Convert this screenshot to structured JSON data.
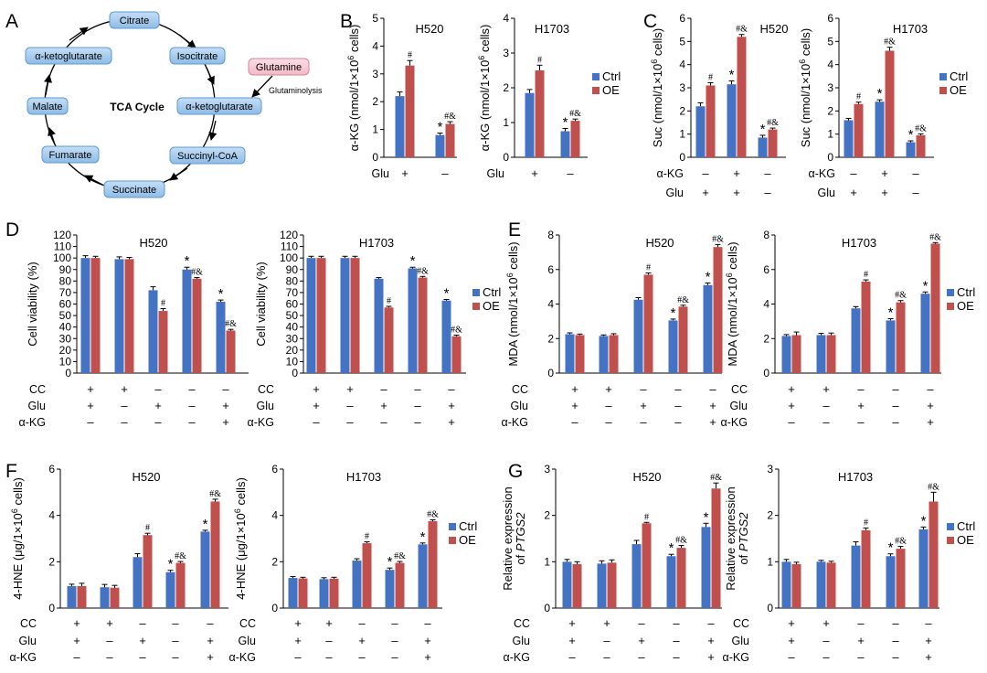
{
  "panel_letters": [
    "A",
    "B",
    "C",
    "D",
    "E",
    "F",
    "G"
  ],
  "colors": {
    "ctrl": "#4573c4",
    "oe": "#c0504d",
    "node_fill": "#9dc3ea",
    "node_stroke": "#5b9bd5",
    "glutamine_fill": "#f5c6cf",
    "glutamine_stroke": "#d9829a"
  },
  "legend": {
    "ctrl": "Ctrl",
    "oe": "OE"
  },
  "tca": {
    "center_label": "TCA Cycle",
    "nodes": [
      "Citrate",
      "Isocitrate",
      "α-ketoglutarate",
      "Succinyl-CoA",
      "Succinate",
      "Fumarate",
      "Malate",
      "α-ketoglutarate"
    ],
    "glutamine": "Glutamine",
    "glutaminolysis": "Glutaminolysis"
  },
  "chart_data": [
    {
      "id": "B1",
      "panel": "B",
      "type": "bar",
      "title": "H520",
      "ylabel": "α-KG (nmol/1×10⁶ cells)",
      "ylim": [
        0,
        5
      ],
      "yticks": [
        0,
        1,
        2,
        3,
        4,
        5
      ],
      "categories": [
        "g1",
        "g2"
      ],
      "series": [
        {
          "name": "Ctrl",
          "values": [
            2.2,
            0.8
          ],
          "errors": [
            0.15,
            0.07
          ]
        },
        {
          "name": "OE",
          "values": [
            3.3,
            1.2
          ],
          "errors": [
            0.18,
            0.08
          ]
        }
      ],
      "factors": [
        {
          "name": "Glu",
          "values": [
            "+",
            "-"
          ]
        }
      ],
      "marks": {
        "ctrl": [
          "",
          "*"
        ],
        "oe": [
          "#",
          "#&"
        ]
      }
    },
    {
      "id": "B2",
      "panel": "B",
      "type": "bar",
      "title": "H1703",
      "ylabel": "α-KG (nmol/1×10⁶ cells)",
      "ylim": [
        0,
        4
      ],
      "yticks": [
        0,
        1,
        2,
        3,
        4
      ],
      "categories": [
        "g1",
        "g2"
      ],
      "series": [
        {
          "name": "Ctrl",
          "values": [
            1.85,
            0.75
          ],
          "errors": [
            0.1,
            0.08
          ]
        },
        {
          "name": "OE",
          "values": [
            2.5,
            1.05
          ],
          "errors": [
            0.15,
            0.05
          ]
        }
      ],
      "factors": [
        {
          "name": "Glu",
          "values": [
            "+",
            "-"
          ]
        }
      ],
      "marks": {
        "ctrl": [
          "",
          "*"
        ],
        "oe": [
          "#",
          "#&"
        ]
      }
    },
    {
      "id": "C1",
      "panel": "C",
      "type": "bar",
      "title": "H520",
      "ylabel": "Suc (nmol/1×10⁶ cells)",
      "ylim": [
        0,
        6
      ],
      "yticks": [
        0,
        1,
        2,
        3,
        4,
        5,
        6
      ],
      "categories": [
        "g1",
        "g2",
        "g3"
      ],
      "series": [
        {
          "name": "Ctrl",
          "values": [
            2.2,
            3.15,
            0.85
          ],
          "errors": [
            0.15,
            0.15,
            0.1
          ]
        },
        {
          "name": "OE",
          "values": [
            3.1,
            5.2,
            1.2
          ],
          "errors": [
            0.12,
            0.1,
            0.06
          ]
        }
      ],
      "factors": [
        {
          "name": "α-KG",
          "values": [
            "-",
            "+",
            "-"
          ]
        },
        {
          "name": "Glu",
          "values": [
            "+",
            "+",
            "-"
          ]
        }
      ],
      "marks": {
        "ctrl": [
          "",
          "*",
          "*"
        ],
        "oe": [
          "#",
          "#&",
          "#&"
        ]
      }
    },
    {
      "id": "C2",
      "panel": "C",
      "type": "bar",
      "title": "H1703",
      "ylabel": "Suc (nmol/1×10⁶ cells)",
      "ylim": [
        0,
        6
      ],
      "yticks": [
        0,
        1,
        2,
        3,
        4,
        5,
        6
      ],
      "categories": [
        "g1",
        "g2",
        "g3"
      ],
      "series": [
        {
          "name": "Ctrl",
          "values": [
            1.6,
            2.4,
            0.65
          ],
          "errors": [
            0.08,
            0.08,
            0.06
          ]
        },
        {
          "name": "OE",
          "values": [
            2.3,
            4.6,
            0.95
          ],
          "errors": [
            0.08,
            0.15,
            0.06
          ]
        }
      ],
      "factors": [
        {
          "name": "α-KG",
          "values": [
            "-",
            "+",
            "-"
          ]
        },
        {
          "name": "Glu",
          "values": [
            "+",
            "+",
            "-"
          ]
        }
      ],
      "marks": {
        "ctrl": [
          "",
          "*",
          "*"
        ],
        "oe": [
          "#",
          "#&",
          "#&"
        ]
      }
    },
    {
      "id": "D1",
      "panel": "D",
      "type": "bar",
      "title": "H520",
      "ylabel": "Cell viability (%)",
      "ylim": [
        0,
        120
      ],
      "yticks": [
        0,
        10,
        20,
        30,
        40,
        50,
        60,
        70,
        80,
        90,
        100,
        110,
        120
      ],
      "categories": [
        "g1",
        "g2",
        "g3",
        "g4",
        "g5"
      ],
      "series": [
        {
          "name": "Ctrl",
          "values": [
            100,
            99,
            72,
            90,
            62
          ],
          "errors": [
            2,
            2,
            3,
            2,
            1.5
          ]
        },
        {
          "name": "OE",
          "values": [
            100,
            99,
            54,
            82,
            37
          ],
          "errors": [
            1.5,
            1.5,
            2,
            1,
            1
          ]
        }
      ],
      "factors": [
        {
          "name": "CC",
          "values": [
            "+",
            "+",
            "-",
            "-",
            "-"
          ]
        },
        {
          "name": "Glu",
          "values": [
            "+",
            "-",
            "+",
            "-",
            "+"
          ]
        },
        {
          "name": "α-KG",
          "values": [
            "-",
            "-",
            "-",
            "-",
            "+"
          ]
        }
      ],
      "marks": {
        "ctrl": [
          "",
          "",
          "",
          "*",
          "*"
        ],
        "oe": [
          "",
          "",
          "#",
          "#&",
          "#&"
        ]
      }
    },
    {
      "id": "D2",
      "panel": "D",
      "type": "bar",
      "title": "H1703",
      "ylabel": "Cell viability (%)",
      "ylim": [
        0,
        120
      ],
      "yticks": [
        0,
        10,
        20,
        30,
        40,
        50,
        60,
        70,
        80,
        90,
        100,
        110,
        120
      ],
      "categories": [
        "g1",
        "g2",
        "g3",
        "g4",
        "g5"
      ],
      "series": [
        {
          "name": "Ctrl",
          "values": [
            100,
            100,
            82,
            91,
            63
          ],
          "errors": [
            1.5,
            1.5,
            1,
            1,
            1
          ]
        },
        {
          "name": "OE",
          "values": [
            100,
            100,
            57,
            83,
            32
          ],
          "errors": [
            1.5,
            1.5,
            1,
            1,
            1
          ]
        }
      ],
      "factors": [
        {
          "name": "CC",
          "values": [
            "+",
            "+",
            "-",
            "-",
            "-"
          ]
        },
        {
          "name": "Glu",
          "values": [
            "+",
            "-",
            "+",
            "-",
            "+"
          ]
        },
        {
          "name": "α-KG",
          "values": [
            "-",
            "-",
            "-",
            "-",
            "+"
          ]
        }
      ],
      "marks": {
        "ctrl": [
          "",
          "",
          "",
          "*",
          "*"
        ],
        "oe": [
          "",
          "",
          "#",
          "#&",
          "#&"
        ]
      }
    },
    {
      "id": "E1",
      "panel": "E",
      "type": "bar",
      "title": "H520",
      "ylabel": "MDA (nmol/1×10⁶ cells)",
      "ylim": [
        0,
        8
      ],
      "yticks": [
        0,
        2,
        4,
        6,
        8
      ],
      "categories": [
        "g1",
        "g2",
        "g3",
        "g4",
        "g5"
      ],
      "series": [
        {
          "name": "Ctrl",
          "values": [
            2.25,
            2.15,
            4.25,
            3.05,
            5.1
          ],
          "errors": [
            0.08,
            0.06,
            0.12,
            0.08,
            0.12
          ]
        },
        {
          "name": "OE",
          "values": [
            2.2,
            2.2,
            5.7,
            3.85,
            7.3
          ],
          "errors": [
            0.06,
            0.08,
            0.1,
            0.08,
            0.15
          ]
        }
      ],
      "factors": [
        {
          "name": "CC",
          "values": [
            "+",
            "+",
            "-",
            "-",
            "-"
          ]
        },
        {
          "name": "Glu",
          "values": [
            "+",
            "-",
            "+",
            "-",
            "+"
          ]
        },
        {
          "name": "α-KG",
          "values": [
            "-",
            "-",
            "-",
            "-",
            "+"
          ]
        }
      ],
      "marks": {
        "ctrl": [
          "",
          "",
          "",
          "*",
          "*"
        ],
        "oe": [
          "",
          "",
          "#",
          "#&",
          "#&"
        ]
      }
    },
    {
      "id": "E2",
      "panel": "E",
      "type": "bar",
      "title": "H1703",
      "ylabel": "MDA (nmol/1×10⁶ cells)",
      "ylim": [
        0,
        8
      ],
      "yticks": [
        0,
        2,
        4,
        6,
        8
      ],
      "categories": [
        "g1",
        "g2",
        "g3",
        "g4",
        "g5"
      ],
      "series": [
        {
          "name": "Ctrl",
          "values": [
            2.15,
            2.2,
            3.75,
            3.05,
            4.6
          ],
          "errors": [
            0.08,
            0.1,
            0.1,
            0.1,
            0.1
          ]
        },
        {
          "name": "OE",
          "values": [
            2.2,
            2.2,
            5.3,
            4.1,
            7.5
          ],
          "errors": [
            0.18,
            0.12,
            0.1,
            0.1,
            0.06
          ]
        }
      ],
      "factors": [
        {
          "name": "CC",
          "values": [
            "+",
            "+",
            "-",
            "-",
            "-"
          ]
        },
        {
          "name": "Glu",
          "values": [
            "+",
            "-",
            "+",
            "-",
            "+"
          ]
        },
        {
          "name": "α-KG",
          "values": [
            "-",
            "-",
            "-",
            "-",
            "+"
          ]
        }
      ],
      "marks": {
        "ctrl": [
          "",
          "",
          "",
          "*",
          "*"
        ],
        "oe": [
          "",
          "",
          "#",
          "#&",
          "#&"
        ]
      }
    },
    {
      "id": "F1",
      "panel": "F",
      "type": "bar",
      "title": "H520",
      "ylabel": "4-HNE (μg/1×10⁶ cells)",
      "ylim": [
        0,
        6
      ],
      "yticks": [
        0,
        2,
        4,
        6
      ],
      "categories": [
        "g1",
        "g2",
        "g3",
        "g4",
        "g5"
      ],
      "series": [
        {
          "name": "Ctrl",
          "values": [
            0.95,
            0.9,
            2.2,
            1.55,
            3.3
          ],
          "errors": [
            0.08,
            0.12,
            0.15,
            0.08,
            0.06
          ]
        },
        {
          "name": "OE",
          "values": [
            0.95,
            0.88,
            3.15,
            1.95,
            4.6
          ],
          "errors": [
            0.12,
            0.1,
            0.08,
            0.06,
            0.1
          ]
        }
      ],
      "factors": [
        {
          "name": "CC",
          "values": [
            "+",
            "+",
            "-",
            "-",
            "-"
          ]
        },
        {
          "name": "Glu",
          "values": [
            "+",
            "-",
            "+",
            "-",
            "+"
          ]
        },
        {
          "name": "α-KG",
          "values": [
            "-",
            "-",
            "-",
            "-",
            "+"
          ]
        }
      ],
      "marks": {
        "ctrl": [
          "",
          "",
          "",
          "*",
          "*"
        ],
        "oe": [
          "",
          "",
          "#",
          "#&",
          "#&"
        ]
      }
    },
    {
      "id": "F2",
      "panel": "F",
      "type": "bar",
      "title": "H1703",
      "ylabel": "4-HNE (μg/1×10⁶ cells)",
      "ylim": [
        0,
        6
      ],
      "yticks": [
        0,
        2,
        4,
        6
      ],
      "categories": [
        "g1",
        "g2",
        "g3",
        "g4",
        "g5"
      ],
      "series": [
        {
          "name": "Ctrl",
          "values": [
            1.3,
            1.25,
            2.05,
            1.65,
            2.75
          ],
          "errors": [
            0.06,
            0.06,
            0.08,
            0.08,
            0.06
          ]
        },
        {
          "name": "OE",
          "values": [
            1.28,
            1.27,
            2.8,
            1.95,
            3.75
          ],
          "errors": [
            0.05,
            0.06,
            0.06,
            0.06,
            0.06
          ]
        }
      ],
      "factors": [
        {
          "name": "CC",
          "values": [
            "+",
            "+",
            "-",
            "-",
            "-"
          ]
        },
        {
          "name": "Glu",
          "values": [
            "+",
            "-",
            "+",
            "-",
            "+"
          ]
        },
        {
          "name": "α-KG",
          "values": [
            "-",
            "-",
            "-",
            "-",
            "+"
          ]
        }
      ],
      "marks": {
        "ctrl": [
          "",
          "",
          "",
          "*",
          "*"
        ],
        "oe": [
          "",
          "",
          "#",
          "#&",
          "#&"
        ]
      }
    },
    {
      "id": "G1",
      "panel": "G",
      "type": "bar",
      "title": "H520",
      "ylabel": "Relative expression of PTGS2",
      "ylabel_line1": "Relative expression",
      "ylabel_line2_prefix": "of ",
      "ylabel_gene": "PTGS2",
      "ylim": [
        0,
        3
      ],
      "yticks": [
        0,
        1,
        2,
        3
      ],
      "categories": [
        "g1",
        "g2",
        "g3",
        "g4",
        "g5"
      ],
      "series": [
        {
          "name": "Ctrl",
          "values": [
            1.0,
            0.96,
            1.38,
            1.12,
            1.75
          ],
          "errors": [
            0.05,
            0.06,
            0.08,
            0.04,
            0.08
          ]
        },
        {
          "name": "OE",
          "values": [
            0.95,
            0.98,
            1.83,
            1.3,
            2.58
          ],
          "errors": [
            0.05,
            0.06,
            0.02,
            0.05,
            0.12
          ]
        }
      ],
      "factors": [
        {
          "name": "CC",
          "values": [
            "+",
            "+",
            "-",
            "-",
            "-"
          ]
        },
        {
          "name": "Glu",
          "values": [
            "+",
            "-",
            "+",
            "-",
            "+"
          ]
        },
        {
          "name": "α-KG",
          "values": [
            "-",
            "-",
            "-",
            "-",
            "+"
          ]
        }
      ],
      "marks": {
        "ctrl": [
          "",
          "",
          "",
          "*",
          "*"
        ],
        "oe": [
          "",
          "",
          "#",
          "#&",
          "#&"
        ]
      }
    },
    {
      "id": "G2",
      "panel": "G",
      "type": "bar",
      "title": "H1703",
      "ylabel": "Relative expression of PTGS2",
      "ylabel_line1": "Relative expression",
      "ylabel_line2_prefix": "of ",
      "ylabel_gene": "PTGS2",
      "ylim": [
        0,
        3
      ],
      "yticks": [
        0,
        1,
        2,
        3
      ],
      "categories": [
        "g1",
        "g2",
        "g3",
        "g4",
        "g5"
      ],
      "series": [
        {
          "name": "Ctrl",
          "values": [
            1.0,
            1.0,
            1.35,
            1.12,
            1.7
          ],
          "errors": [
            0.05,
            0.03,
            0.08,
            0.05,
            0.05
          ]
        },
        {
          "name": "OE",
          "values": [
            0.95,
            0.98,
            1.68,
            1.28,
            2.3
          ],
          "errors": [
            0.04,
            0.03,
            0.05,
            0.05,
            0.2
          ]
        }
      ],
      "factors": [
        {
          "name": "CC",
          "values": [
            "+",
            "+",
            "-",
            "-",
            "-"
          ]
        },
        {
          "name": "Glu",
          "values": [
            "+",
            "-",
            "+",
            "-",
            "+"
          ]
        },
        {
          "name": "α-KG",
          "values": [
            "-",
            "-",
            "-",
            "-",
            "+"
          ]
        }
      ],
      "marks": {
        "ctrl": [
          "",
          "",
          "",
          "*",
          "*"
        ],
        "oe": [
          "",
          "",
          "#",
          "#&",
          "#&"
        ]
      }
    }
  ]
}
